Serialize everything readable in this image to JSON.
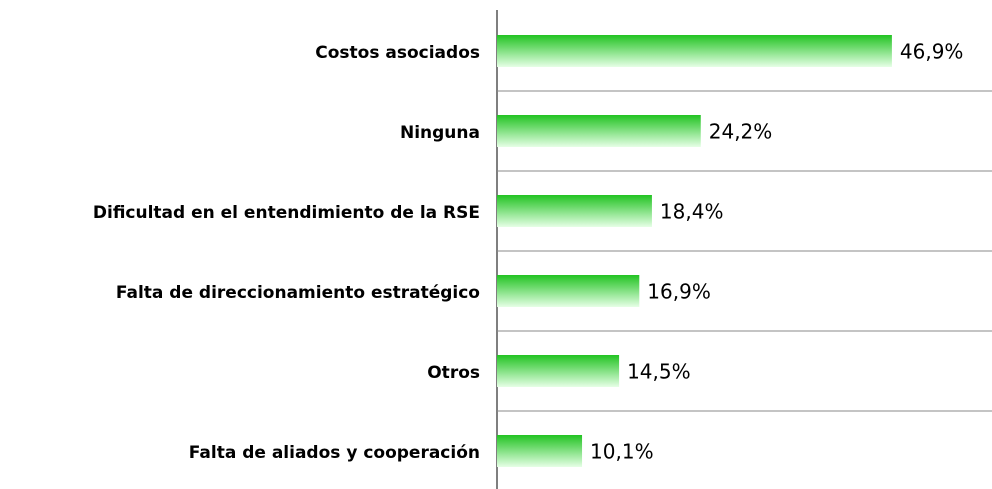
{
  "chart_data": {
    "type": "bar",
    "orientation": "horizontal",
    "categories": [
      "Costos asociados",
      "Ninguna",
      "Dificultad en el entendimiento de la RSE",
      "Falta de direccionamiento estratégico",
      "Otros",
      "Falta de aliados y cooperación"
    ],
    "values": [
      46.9,
      24.2,
      18.4,
      16.9,
      14.5,
      10.1
    ],
    "value_labels": [
      "46,9%",
      "24,2%",
      "18,4%",
      "16,9%",
      "14,5%",
      "10,1%"
    ],
    "color": "#22c322",
    "xlim": [
      0,
      50
    ]
  }
}
